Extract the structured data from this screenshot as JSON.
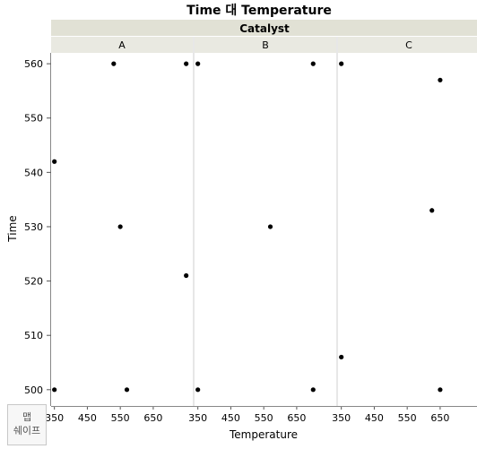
{
  "chart_data": {
    "type": "scatter",
    "title": "Time 대 Temperature",
    "group_label": "Catalyst",
    "panels": [
      {
        "name": "A",
        "points": [
          [
            350,
            542
          ],
          [
            350,
            500
          ],
          [
            530,
            560
          ],
          [
            550,
            530
          ],
          [
            570,
            500
          ],
          [
            750,
            560
          ],
          [
            750,
            521
          ]
        ]
      },
      {
        "name": "B",
        "points": [
          [
            350,
            560
          ],
          [
            350,
            500
          ],
          [
            570,
            530
          ],
          [
            700,
            560
          ],
          [
            700,
            500
          ]
        ]
      },
      {
        "name": "C",
        "points": [
          [
            350,
            560
          ],
          [
            350,
            506
          ],
          [
            625,
            533
          ],
          [
            650,
            557
          ],
          [
            650,
            500
          ]
        ]
      }
    ],
    "xlabel": "Temperature",
    "ylabel": "Time",
    "xlim": [
      340,
      770
    ],
    "ylim": [
      497,
      562
    ],
    "xticks": [
      350,
      450,
      550,
      650
    ],
    "yticks": [
      500,
      510,
      520,
      530,
      540,
      550,
      560
    ],
    "grid": false,
    "marker_color": "#000000"
  },
  "ui": {
    "map_shape_line1": "맵",
    "map_shape_line2": "쉐이프"
  }
}
